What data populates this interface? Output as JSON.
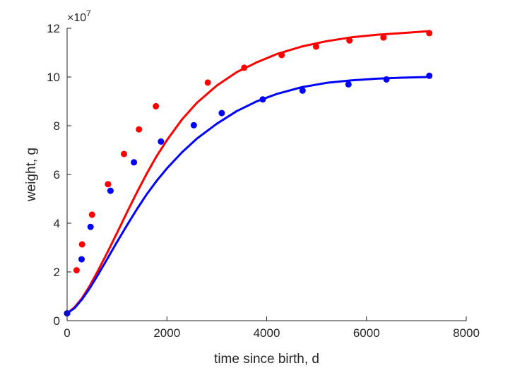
{
  "chart_data": {
    "type": "scatter",
    "title": "",
    "xlabel": "time since birth, d",
    "ylabel": "weight, g",
    "y_exponent_label": "×10^7",
    "y_exponent_base": "×10",
    "y_exponent_power": "7",
    "xlim": [
      0,
      8000
    ],
    "ylim": [
      0,
      12
    ],
    "y_scale_factor": 10000000,
    "x_ticks": [
      0,
      2000,
      4000,
      6000,
      8000
    ],
    "x_tick_labels": [
      "0",
      "2000",
      "4000",
      "6000",
      "8000"
    ],
    "y_ticks": [
      0,
      2,
      4,
      6,
      8,
      10,
      12
    ],
    "y_tick_labels": [
      "0",
      "2",
      "4",
      "6",
      "8",
      "10",
      "12"
    ],
    "grid": false,
    "colors": {
      "red": "#ff0000",
      "blue": "#0000ff",
      "axis": "#262626"
    },
    "series": [
      {
        "color": "#ff0000",
        "points_x": [
          0,
          190,
          300,
          500,
          820,
          1140,
          1440,
          1780,
          2820,
          3550,
          4300,
          4990,
          5660,
          6340,
          7260
        ],
        "points_y": [
          0.3,
          2.07,
          3.13,
          4.35,
          5.6,
          6.84,
          7.85,
          8.8,
          9.77,
          10.38,
          10.9,
          11.25,
          11.5,
          11.62,
          11.8
        ],
        "fit_x": [
          0,
          150,
          300,
          450,
          600,
          800,
          1000,
          1200,
          1400,
          1600,
          1800,
          2000,
          2300,
          2600,
          3000,
          3400,
          3800,
          4200,
          4700,
          5200,
          5700,
          6200,
          6700,
          7250
        ],
        "fit_y": [
          0.3,
          0.55,
          0.93,
          1.42,
          1.98,
          2.77,
          3.6,
          4.45,
          5.27,
          6.05,
          6.77,
          7.41,
          8.25,
          8.94,
          9.65,
          10.2,
          10.6,
          10.94,
          11.25,
          11.47,
          11.63,
          11.73,
          11.8,
          11.88
        ]
      },
      {
        "color": "#0000ff",
        "points_x": [
          0,
          290,
          470,
          870,
          1340,
          1880,
          2540,
          3100,
          3920,
          4720,
          5640,
          6400,
          7260
        ],
        "points_y": [
          0.3,
          2.52,
          3.85,
          5.33,
          6.5,
          7.35,
          8.02,
          8.52,
          9.08,
          9.44,
          9.7,
          9.9,
          10.05
        ],
        "fit_x": [
          0,
          150,
          300,
          450,
          600,
          800,
          1000,
          1200,
          1400,
          1600,
          1800,
          2000,
          2300,
          2600,
          3000,
          3400,
          3800,
          4200,
          4700,
          5200,
          5700,
          6200,
          6700,
          7250
        ],
        "fit_y": [
          0.3,
          0.52,
          0.88,
          1.32,
          1.82,
          2.52,
          3.23,
          3.92,
          4.58,
          5.2,
          5.75,
          6.25,
          6.9,
          7.47,
          8.08,
          8.6,
          9.0,
          9.3,
          9.58,
          9.76,
          9.86,
          9.93,
          9.97,
          10.0
        ]
      }
    ]
  }
}
